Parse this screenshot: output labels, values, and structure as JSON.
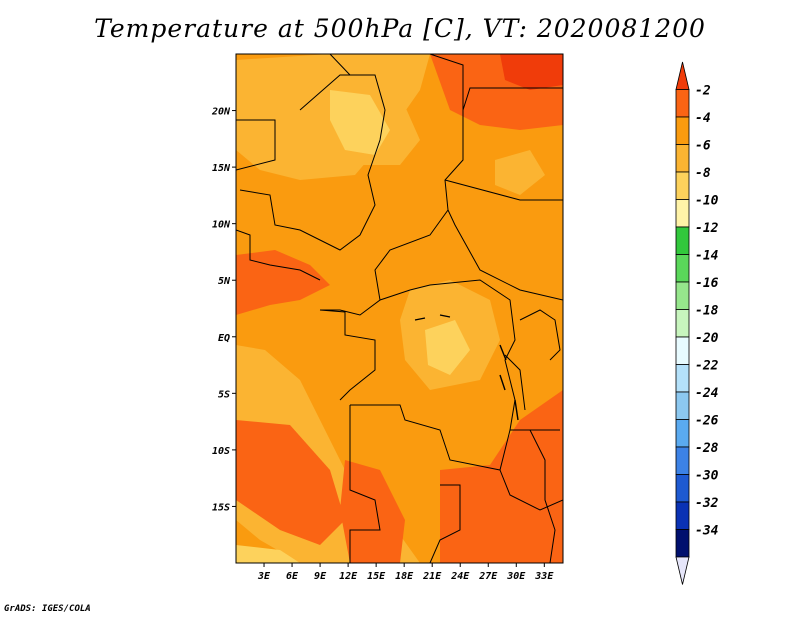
{
  "title": "Temperature at 500hPa [C], VT: 2020081200",
  "credit": "GrADS: IGES/COLA",
  "map": {
    "variable": "Temperature",
    "level": "500hPa",
    "units": "C",
    "valid_time": "2020081200",
    "lon_range": [
      0,
      35
    ],
    "lat_range": [
      -20,
      25
    ],
    "lon_ticks": [
      "3E",
      "6E",
      "9E",
      "12E",
      "15E",
      "18E",
      "21E",
      "24E",
      "27E",
      "30E",
      "33E"
    ],
    "lat_ticks": [
      "20N",
      "15N",
      "10N",
      "5N",
      "EQ",
      "5S",
      "10S",
      "15S"
    ],
    "fill_colors": {
      "gt_-2": "#f03c0a",
      "-4_-2": "#fa6414",
      "-6_-4": "#fa9b0f",
      "-8_-6": "#fbb432",
      "-10_-8": "#fdd25c",
      "background": "#fa9b0f"
    }
  },
  "colorbar": {
    "labels": [
      "-2",
      "-4",
      "-6",
      "-8",
      "-10",
      "-12",
      "-14",
      "-16",
      "-18",
      "-20",
      "-22",
      "-24",
      "-26",
      "-28",
      "-30",
      "-32",
      "-34"
    ],
    "colors": [
      "#f03c0a",
      "#fa6414",
      "#fa9b0f",
      "#fbb432",
      "#fdd25c",
      "#fff3a8",
      "#32c83c",
      "#5ad75a",
      "#96e68c",
      "#c8f5be",
      "#e8fbff",
      "#b4e1fa",
      "#8cc8f0",
      "#5aaaf0",
      "#3c82e6",
      "#1e5ad2",
      "#0a32b4",
      "#00106e",
      "#e6e6fa"
    ]
  }
}
